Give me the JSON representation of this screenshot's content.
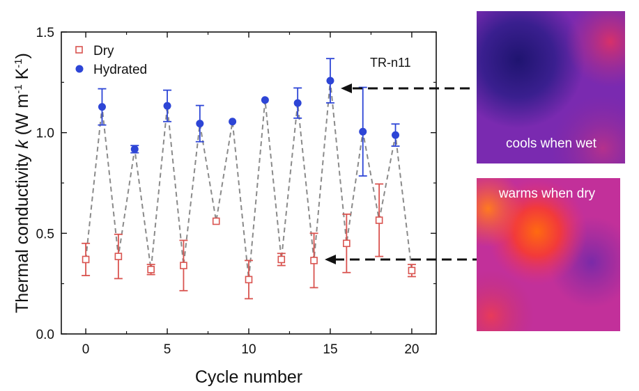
{
  "chart_data": {
    "type": "scatter",
    "xlabel": "Cycle number",
    "ylabel_pre": "Thermal conductivity ",
    "ylabel_k": "k",
    "ylabel_unit": " (W m",
    "ylabel_exp1": "-1",
    "ylabel_mid": " K",
    "ylabel_exp2": "-1",
    "ylabel_end": ")",
    "xlim": [
      -1.5,
      21.5
    ],
    "ylim": [
      0.0,
      1.5
    ],
    "xticks": [
      "0",
      "5",
      "10",
      "15",
      "20"
    ],
    "xtick_values": [
      0,
      5,
      10,
      15,
      20
    ],
    "yticks": [
      "0.0",
      "0.5",
      "1.0",
      "1.5"
    ],
    "ytick_values": [
      0.0,
      0.5,
      1.0,
      1.5
    ],
    "annotation": "TR-n11",
    "legend_position": "top-left",
    "connector": {
      "style": "dashed",
      "color": "#8a8a8a"
    },
    "series": [
      {
        "name": "Dry",
        "marker": "open-square",
        "color": "#d9534f",
        "x": [
          0,
          2,
          4,
          6,
          8,
          10,
          12,
          14,
          16,
          18,
          20
        ],
        "y": [
          0.37,
          0.385,
          0.32,
          0.34,
          0.56,
          0.27,
          0.37,
          0.365,
          0.45,
          0.565,
          0.315
        ],
        "err": [
          0.08,
          0.11,
          0.025,
          0.125,
          0.0,
          0.095,
          0.03,
          0.135,
          0.145,
          0.18,
          0.03
        ]
      },
      {
        "name": "Hydrated",
        "marker": "filled-circle",
        "color": "#2d45d6",
        "x": [
          1,
          3,
          5,
          7,
          9,
          11,
          13,
          15,
          17,
          19
        ],
        "y": [
          1.128,
          0.918,
          1.133,
          1.045,
          1.055,
          1.162,
          1.147,
          1.258,
          1.005,
          0.988
        ],
        "err": [
          0.09,
          0.018,
          0.078,
          0.09,
          0.0,
          0.0,
          0.075,
          0.11,
          0.22,
          0.055
        ]
      }
    ]
  },
  "thermal_images": {
    "wet_label": "cools when wet",
    "dry_label": "warms when dry"
  }
}
